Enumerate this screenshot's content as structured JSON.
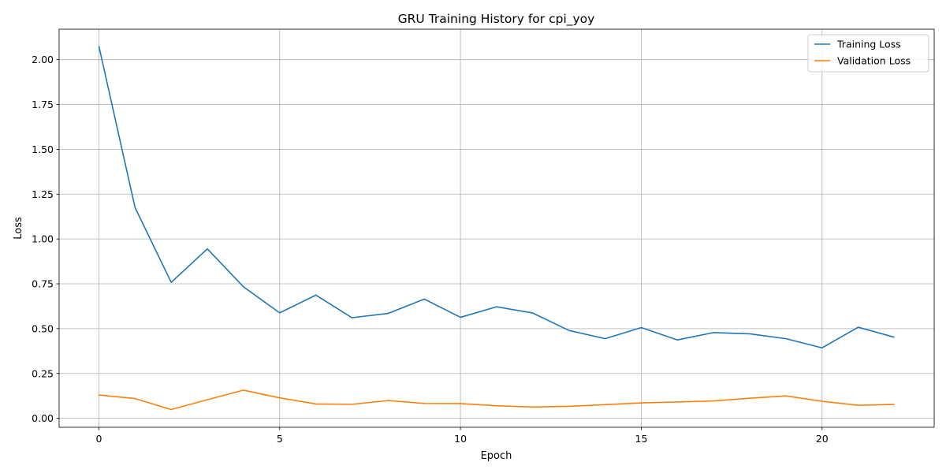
{
  "chart_data": {
    "type": "line",
    "title": "GRU Training History for cpi_yoy",
    "xlabel": "Epoch",
    "ylabel": "Loss",
    "xlim": [
      -1.1,
      23.1
    ],
    "ylim": [
      -0.05,
      2.17
    ],
    "xticks": [
      0,
      5,
      10,
      15,
      20
    ],
    "yticks": [
      0.0,
      0.25,
      0.5,
      0.75,
      1.0,
      1.25,
      1.5,
      1.75,
      2.0
    ],
    "ytick_labels": [
      "0.00",
      "0.25",
      "0.50",
      "0.75",
      "1.00",
      "1.25",
      "1.50",
      "1.75",
      "2.00"
    ],
    "grid": true,
    "legend": "top-right",
    "x": [
      0,
      1,
      2,
      3,
      4,
      5,
      6,
      7,
      8,
      9,
      10,
      11,
      12,
      13,
      14,
      15,
      16,
      17,
      18,
      19,
      20,
      21,
      22
    ],
    "series": [
      {
        "name": "Training Loss",
        "color": "#1f77b4",
        "values": [
          2.075,
          1.175,
          0.758,
          0.945,
          0.733,
          0.588,
          0.687,
          0.561,
          0.585,
          0.665,
          0.563,
          0.622,
          0.587,
          0.49,
          0.444,
          0.506,
          0.437,
          0.478,
          0.471,
          0.444,
          0.393,
          0.508,
          0.452
        ]
      },
      {
        "name": "Validation Loss",
        "color": "#ff7f0e",
        "values": [
          0.13,
          0.11,
          0.049,
          0.104,
          0.157,
          0.114,
          0.08,
          0.078,
          0.099,
          0.083,
          0.082,
          0.07,
          0.063,
          0.067,
          0.076,
          0.086,
          0.091,
          0.097,
          0.112,
          0.125,
          0.095,
          0.073,
          0.077
        ]
      }
    ]
  }
}
